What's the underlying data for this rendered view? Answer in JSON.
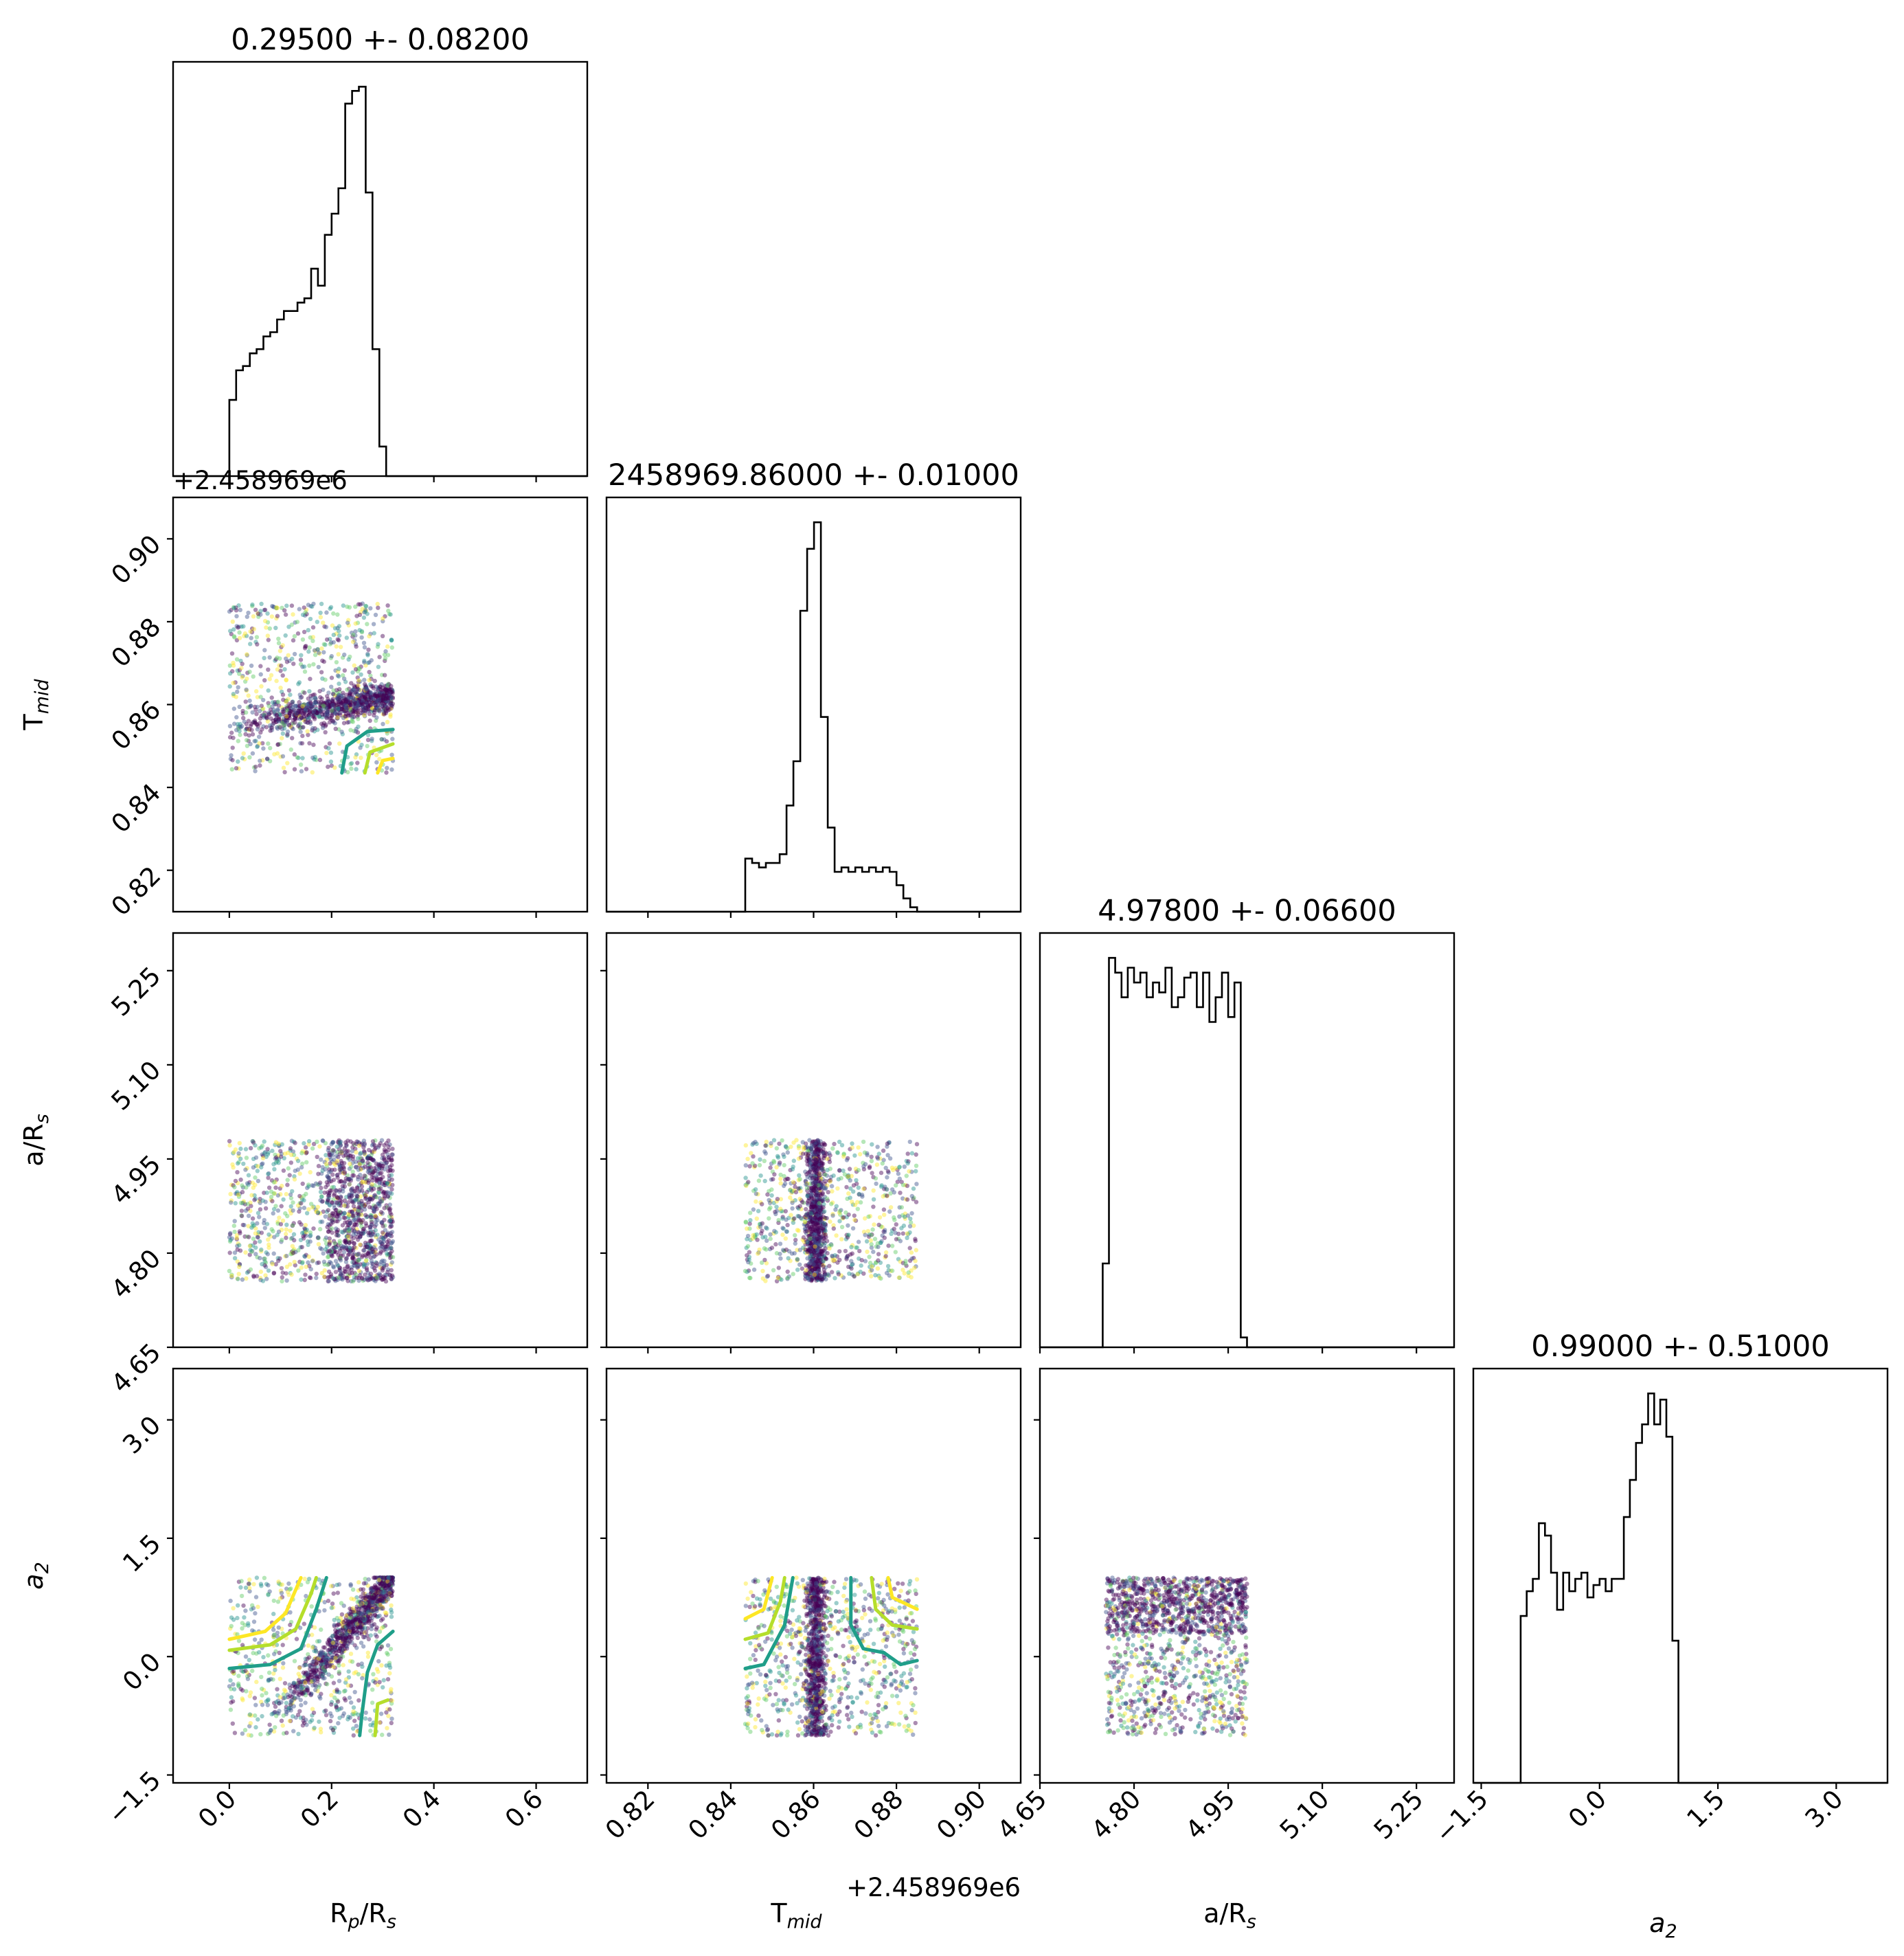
{
  "chart_data": {
    "type": "corner",
    "parameters": [
      {
        "key": "rp",
        "label": "R",
        "label_sub1": "p",
        "label_mid": "/R",
        "label_sub2": "s",
        "range": [
          -0.11,
          0.7
        ],
        "ticks": [
          0.0,
          0.2,
          0.4,
          0.6
        ],
        "tick_labels": [
          "0.0",
          "0.2",
          "0.4",
          "0.6"
        ]
      },
      {
        "key": "tmid",
        "label": "T",
        "label_sub1": "mid",
        "offset_text": "+2.458969e6",
        "range": [
          0.81,
          0.91
        ],
        "ticks": [
          0.82,
          0.84,
          0.86,
          0.88,
          0.9
        ],
        "tick_labels": [
          "0.82",
          "0.84",
          "0.86",
          "0.88",
          "0.90"
        ]
      },
      {
        "key": "ars",
        "label": "a/R",
        "label_sub1": "s",
        "range": [
          4.65,
          5.31
        ],
        "ticks": [
          4.65,
          4.8,
          4.95,
          5.1,
          5.25
        ],
        "tick_labels": [
          "4.65",
          "4.80",
          "4.95",
          "5.10",
          "5.25"
        ]
      },
      {
        "key": "a2",
        "label": "a",
        "label_sub1": "2",
        "range": [
          -1.6,
          3.65
        ],
        "ticks": [
          -1.5,
          0.0,
          1.5,
          3.0
        ],
        "tick_labels": [
          "−1.5",
          "0.0",
          "1.5",
          "3.0"
        ]
      }
    ],
    "titles": [
      "0.29500 +- 0.08200",
      "2458969.86000 +- 0.01000",
      "4.97800 +- 0.06600",
      "0.99000 +- 0.51000"
    ],
    "histograms": [
      {
        "param": "rp",
        "range": [
          0.0,
          0.32
        ],
        "counts": [
          18,
          25,
          26,
          29,
          30,
          33,
          34,
          37,
          39,
          39,
          41,
          42,
          49,
          45,
          57,
          62,
          68,
          88,
          91,
          92,
          67,
          30,
          7,
          0
        ]
      },
      {
        "param": "tmid",
        "range": [
          0.8435,
          0.885
        ],
        "counts": [
          12,
          11,
          10,
          11,
          11,
          13,
          24,
          34,
          68,
          82,
          88,
          44,
          19,
          9,
          10,
          9,
          10,
          9,
          10,
          9,
          10,
          9,
          6,
          3,
          1
        ]
      },
      {
        "param": "ars",
        "range": [
          4.75,
          4.98
        ],
        "counts": [
          17,
          79,
          76,
          71,
          77,
          74,
          76,
          71,
          74,
          72,
          77,
          69,
          71,
          75,
          76,
          69,
          76,
          66,
          71,
          76,
          67,
          74,
          2
        ]
      },
      {
        "param": "a2",
        "range": [
          -1.0,
          1.0
        ],
        "counts": [
          27,
          31,
          33,
          42,
          40,
          34,
          28,
          34,
          31,
          33,
          34,
          30,
          32,
          33,
          31,
          33,
          33,
          43,
          49,
          55,
          58,
          63,
          58,
          62,
          56,
          23
        ]
      }
    ],
    "scatter_panels": [
      {
        "x": "rp",
        "y": "tmid",
        "x_range": [
          0.0,
          0.32
        ],
        "y_range": [
          0.8435,
          0.8845
        ],
        "ridge": "horizontal band rising toward T_mid 0.862 at R_p/R_s 0.3"
      },
      {
        "x": "rp",
        "y": "ars",
        "x_range": [
          0.0,
          0.32
        ],
        "y_range": [
          4.755,
          4.98
        ],
        "ridge": "uniform, denser at R_p/R_s > 0.2"
      },
      {
        "x": "tmid",
        "y": "ars",
        "x_range": [
          0.8435,
          0.885
        ],
        "y_range": [
          4.755,
          4.98
        ],
        "ridge": "vertical band at T_mid 0.86"
      },
      {
        "x": "rp",
        "y": "a2",
        "x_range": [
          0.0,
          0.32
        ],
        "y_range": [
          -1.0,
          1.0
        ],
        "ridge": "diagonal band from a2 -0.8 at 0.05 to a2 1.0 at 0.31"
      },
      {
        "x": "tmid",
        "y": "a2",
        "x_range": [
          0.8435,
          0.885
        ],
        "y_range": [
          -1.0,
          1.0
        ],
        "ridge": "vertical band at T_mid 0.86"
      },
      {
        "x": "ars",
        "y": "a2",
        "x_range": [
          4.755,
          4.98
        ],
        "y_range": [
          -1.0,
          1.0
        ],
        "ridge": "uniform, denser at a2 > 0.3"
      }
    ],
    "offset_texts": {
      "tmid_y_axis": "+2.458969e6",
      "tmid_x_axis": "+2.458969e6"
    },
    "colormap": [
      "#440154",
      "#3b528b",
      "#21918c",
      "#5ec962",
      "#fde725"
    ],
    "contour_colors": [
      "#1f9e89",
      "#6ece58",
      "#b5de2b",
      "#fde725"
    ],
    "grid": false,
    "legend": "none"
  }
}
